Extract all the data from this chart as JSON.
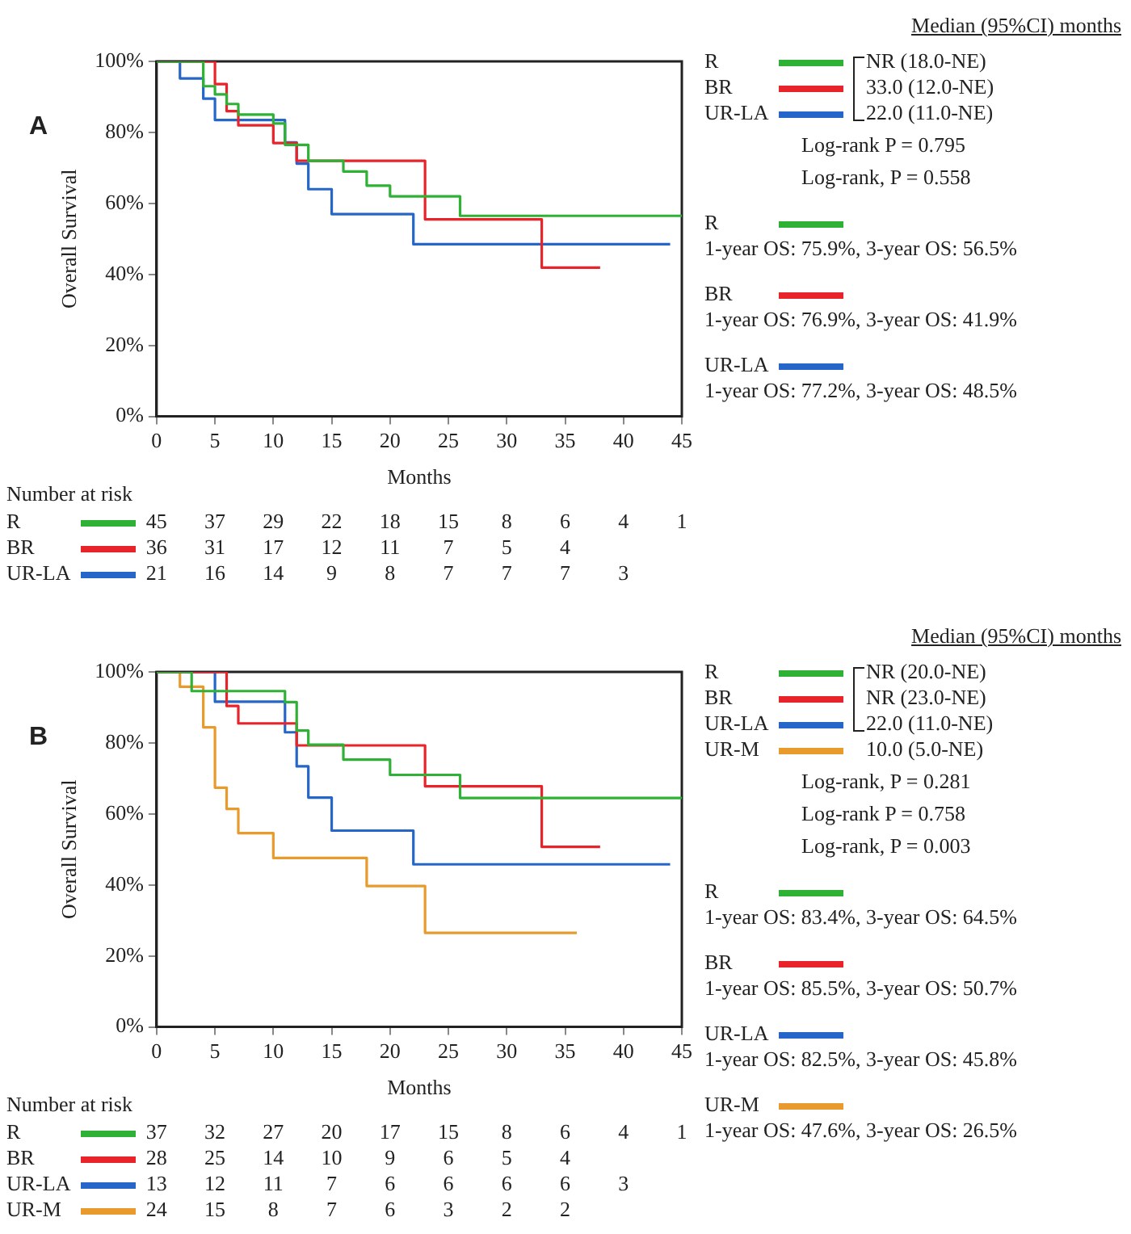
{
  "chart_data": [
    {
      "type": "step",
      "title": "A",
      "xlabel": "Months",
      "ylabel": "Overall Survival",
      "legend": "right",
      "xlim": [
        0,
        45
      ],
      "xticks": [
        0,
        5,
        10,
        15,
        20,
        25,
        30,
        35,
        40,
        45
      ],
      "ylim": [
        0,
        100
      ],
      "yticks": [
        {
          "value": 0,
          "label": "0%"
        },
        {
          "value": 20,
          "label": "20%"
        },
        {
          "value": 40,
          "label": "40%"
        },
        {
          "value": 60,
          "label": "60%"
        },
        {
          "value": 80,
          "label": "80%"
        },
        {
          "value": 100,
          "label": "100%"
        }
      ],
      "series": [
        {
          "name": "R",
          "color": "#2eb135",
          "x": [
            0,
            4,
            5,
            6,
            7,
            10,
            11,
            13,
            16,
            18,
            20,
            26,
            45
          ],
          "values": [
            100,
            93,
            90.7,
            88,
            85,
            82.5,
            76.5,
            72,
            69,
            65,
            62,
            56.5,
            56.5
          ]
        },
        {
          "name": "BR",
          "color": "#e8232a",
          "x": [
            0,
            5,
            6,
            7,
            10,
            12,
            23,
            33,
            38
          ],
          "values": [
            100,
            93.6,
            86,
            82,
            77,
            72,
            55.5,
            41.9,
            41.9
          ]
        },
        {
          "name": "UR-LA",
          "color": "#2566c8",
          "x": [
            0,
            2,
            4,
            5,
            11,
            12,
            13,
            15,
            22,
            44
          ],
          "values": [
            100,
            95.2,
            89.5,
            83.5,
            77.2,
            71.2,
            64,
            57,
            48.5,
            48.5
          ]
        }
      ],
      "annotations": [
        "Median (95%CI) months",
        "NR (18.0-NE)",
        "33.0 (12.0-NE)",
        "22.0 (11.0-NE)",
        "Log-rank P = 0.795",
        "Log-rank, P = 0.558",
        "1-year OS: 75.9%, 3-year OS: 56.5%",
        "1-year OS: 76.9%, 3-year OS: 41.9%",
        "1-year OS: 77.2%, 3-year OS: 48.5%",
        "Number at risk",
        "R 45 37 29 22 18 15 8 6 4 1",
        "BR 36 31 17 12 11 7 5 4",
        "UR-LA 21 16 14 9 8 7 7 7 3"
      ]
    },
    {
      "type": "step",
      "title": "B",
      "xlabel": "Months",
      "ylabel": "Overall Survival",
      "legend": "right",
      "xlim": [
        0,
        45
      ],
      "xticks": [
        0,
        5,
        10,
        15,
        20,
        25,
        30,
        35,
        40,
        45
      ],
      "ylim": [
        0,
        100
      ],
      "yticks": [
        {
          "value": 0,
          "label": "0%"
        },
        {
          "value": 20,
          "label": "20%"
        },
        {
          "value": 40,
          "label": "40%"
        },
        {
          "value": 60,
          "label": "60%"
        },
        {
          "value": 80,
          "label": "80%"
        },
        {
          "value": 100,
          "label": "100%"
        }
      ],
      "series": [
        {
          "name": "R",
          "color": "#2eb135",
          "x": [
            0,
            3,
            11,
            12,
            13,
            16,
            20,
            26,
            45
          ],
          "values": [
            100,
            94.6,
            91.5,
            83.5,
            79.5,
            75.3,
            71,
            64.5,
            64.5
          ]
        },
        {
          "name": "BR",
          "color": "#e8232a",
          "x": [
            0,
            6,
            7,
            12,
            23,
            33,
            38
          ],
          "values": [
            100,
            90.4,
            85.5,
            79.3,
            67.8,
            50.7,
            50.7
          ]
        },
        {
          "name": "UR-LA",
          "color": "#2566c8",
          "x": [
            0,
            5,
            11,
            12,
            13,
            15,
            22,
            44
          ],
          "values": [
            100,
            91.6,
            83,
            73.4,
            64.6,
            55.3,
            45.8,
            45.8
          ]
        },
        {
          "name": "UR-M",
          "color": "#e89a2c",
          "x": [
            0,
            2,
            4,
            5,
            6,
            7,
            10,
            18,
            23,
            36
          ],
          "values": [
            100,
            95.8,
            84.4,
            67.4,
            61.4,
            54.6,
            47.6,
            39.7,
            26.5,
            26.5
          ]
        }
      ],
      "annotations": [
        "Median (95%CI) months",
        "NR (20.0-NE)",
        "NR (23.0-NE)",
        "22.0 (11.0-NE)",
        "10.0 (5.0-NE)",
        "Log-rank, P = 0.281",
        "Log-rank P = 0.758",
        "Log-rank, P = 0.003",
        "1-year OS: 83.4%, 3-year OS: 64.5%",
        "1-year OS: 85.5%, 3-year OS: 50.7%",
        "1-year OS: 82.5%, 3-year OS: 45.8%",
        "1-year OS: 47.6%, 3-year OS: 26.5%",
        "Number at risk",
        "R 37 32 27 20 17 15 8 6 4 1",
        "BR 28 25 14 10 9 6 5 4",
        "UR-LA 13 12 11 7 6 6 6 6 3",
        "UR-M 24 15 8 7 6 3 2 2"
      ]
    }
  ]
}
